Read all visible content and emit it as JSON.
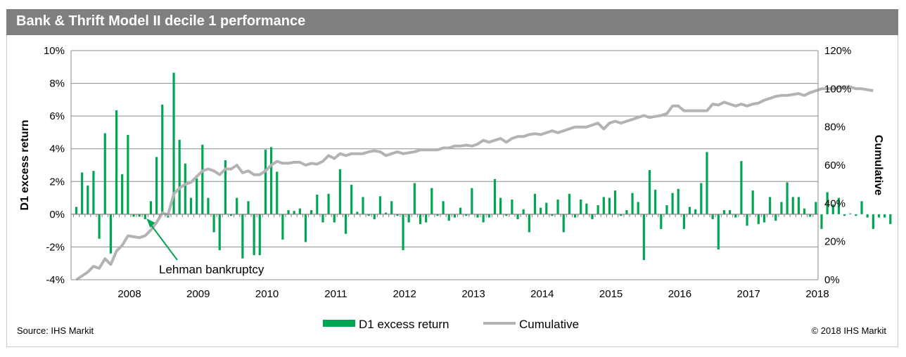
{
  "header": {
    "title": "Bank & Thrift Model II decile 1 performance"
  },
  "footer": {
    "source": "Source: IHS Markit",
    "copyright": "© 2018 IHS Markit"
  },
  "colors": {
    "bar": "#00a651",
    "line": "#b3b3b3",
    "grid": "#8c8c8c",
    "header_bg": "#7f7f7f"
  },
  "chart_data": {
    "type": "bar+line",
    "title": "Bank & Thrift Model II decile 1 performance",
    "ylabel_left": "D1 excess return",
    "ylabel_right": "Cumulative",
    "ylim_left": [
      -4,
      10
    ],
    "ylim_right": [
      0,
      120
    ],
    "yticks_left": [
      "-4%",
      "-2%",
      "0%",
      "2%",
      "4%",
      "6%",
      "8%",
      "10%"
    ],
    "yticks_right": [
      "0%",
      "20%",
      "40%",
      "60%",
      "80%",
      "100%",
      "120%"
    ],
    "xticks": [
      "2008",
      "2009",
      "2010",
      "2011",
      "2012",
      "2013",
      "2014",
      "2015",
      "2016",
      "2017",
      "2018"
    ],
    "x_start": "2007-09",
    "frequency": "monthly",
    "grid": true,
    "legend": {
      "position": "bottom-center",
      "entries": [
        "D1 excess return",
        "Cumulative"
      ]
    },
    "annotation": {
      "text": "Lehman bankruptcy",
      "date": "2008-09"
    },
    "series": [
      {
        "name": "D1 excess return",
        "kind": "bar",
        "values": [
          0.45,
          2.55,
          1.75,
          2.65,
          -1.5,
          4.95,
          -2.4,
          6.35,
          2.45,
          4.85,
          -0.15,
          -0.15,
          -0.3,
          0.8,
          3.5,
          6.7,
          -0.2,
          8.65,
          4.55,
          3.1,
          1.0,
          2.2,
          4.25,
          1.0,
          -1.1,
          -2.2,
          3.3,
          -0.1,
          1.0,
          -2.7,
          0.8,
          -2.5,
          -2.5,
          3.95,
          4.1,
          2.6,
          -1.55,
          0.25,
          0.2,
          0.35,
          -1.7,
          0.25,
          1.2,
          -0.5,
          1.25,
          -0.5,
          2.75,
          -1.2,
          1.8,
          0.15,
          1.05,
          -0.1,
          -0.3,
          1.1,
          0.1,
          0.8,
          -0.1,
          -2.2,
          -0.5,
          1.9,
          -0.6,
          -0.5,
          1.6,
          -0.1,
          0.8,
          -0.4,
          -0.2,
          0.4,
          -0.1,
          1.6,
          -0.2,
          -0.5,
          -0.2,
          2.15,
          1.0,
          -0.1,
          0.9,
          -0.3,
          0.3,
          -1.1,
          1.25,
          0.4,
          0.7,
          -0.1,
          0.9,
          -1.1,
          1.25,
          -0.2,
          0.9,
          0.65,
          -0.3,
          0.55,
          1.05,
          1.0,
          1.45,
          -0.1,
          0.25,
          1.3,
          0.75,
          -2.8,
          2.7,
          1.5,
          -0.9,
          0.55,
          1.3,
          1.55,
          -0.9,
          0.45,
          0.3,
          1.9,
          3.8,
          -0.3,
          -2.15,
          0.25,
          0.25,
          -0.2,
          3.25,
          -0.7,
          1.45,
          -0.6,
          -0.5,
          1.05,
          -0.4,
          0.75,
          1.95,
          1.05,
          1.05,
          0.35,
          -0.15,
          0.75,
          -0.9,
          1.35,
          0.6,
          1.0,
          -0.1,
          0.05,
          -0.1,
          0.8,
          -0.2,
          -0.9,
          -0.2,
          -0.2,
          -0.6
        ]
      },
      {
        "name": "Cumulative",
        "kind": "line",
        "values": [
          0,
          2,
          4,
          7,
          6,
          11,
          8,
          15,
          18,
          23,
          22.5,
          22,
          23,
          26,
          30,
          35,
          34,
          45,
          48,
          50,
          51,
          54,
          57,
          58,
          57,
          55,
          58,
          58,
          60,
          56,
          57,
          55,
          55,
          57,
          60,
          62,
          61,
          61,
          61.5,
          61.5,
          60,
          61,
          60.5,
          62,
          65,
          63.5,
          66,
          65,
          66,
          66,
          66,
          67,
          67.5,
          67,
          65,
          66,
          67,
          66,
          66.5,
          67,
          68,
          68,
          68,
          68,
          69,
          69,
          70,
          70,
          70.5,
          70,
          71,
          73,
          72,
          73,
          74,
          72,
          74,
          75,
          75,
          76,
          76.5,
          76,
          77,
          78,
          77,
          78,
          79,
          80,
          80,
          80,
          81,
          82,
          79,
          82,
          83,
          82,
          83,
          84,
          85,
          86,
          85,
          85.5,
          86,
          87,
          91,
          91,
          88.5,
          88.5,
          88.5,
          88.5,
          88.5,
          92,
          91.5,
          93,
          92,
          91,
          92,
          91,
          92,
          92.5,
          94,
          95,
          96,
          96.5,
          96.5,
          97,
          97.5,
          96.5,
          98,
          99,
          100,
          100,
          100,
          100.5,
          101,
          101,
          100,
          100,
          99.5,
          99
        ]
      }
    ]
  }
}
